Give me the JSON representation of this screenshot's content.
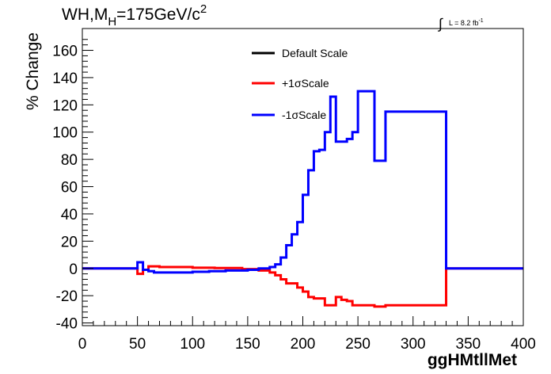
{
  "chart_data": {
    "type": "line",
    "title": {
      "prefix": "WH,M",
      "subscript": "H",
      "value": "=175GeV/c",
      "superscript": "2"
    },
    "lumi": {
      "integral_sign": "∫",
      "text": "L = 8.2 fb",
      "superscript": "-1"
    },
    "xlabel": "ggHMtllMet",
    "ylabel": "% Change",
    "xlim": [
      0,
      400
    ],
    "ylim": [
      -42,
      176
    ],
    "x_ticks": [
      0,
      50,
      100,
      150,
      200,
      250,
      300,
      350,
      400
    ],
    "y_ticks": [
      -40,
      -20,
      0,
      20,
      40,
      60,
      80,
      100,
      120,
      140,
      160
    ],
    "grid": false,
    "legend_position": "top-center",
    "series": [
      {
        "name": "Default Scale",
        "color": "#000000",
        "steps": []
      },
      {
        "name": "+1σScale",
        "color": "#ff0000",
        "steps": [
          [
            0,
            50,
            0
          ],
          [
            50,
            55,
            -4
          ],
          [
            55,
            60,
            -1
          ],
          [
            60,
            70,
            1.5
          ],
          [
            70,
            80,
            1
          ],
          [
            80,
            100,
            1
          ],
          [
            100,
            120,
            0.5
          ],
          [
            120,
            145,
            0.3
          ],
          [
            145,
            160,
            -0.5
          ],
          [
            160,
            170,
            -1.5
          ],
          [
            170,
            175,
            -3
          ],
          [
            175,
            180,
            -5
          ],
          [
            180,
            185,
            -8
          ],
          [
            185,
            195,
            -11
          ],
          [
            195,
            200,
            -14
          ],
          [
            200,
            205,
            -17
          ],
          [
            205,
            210,
            -21
          ],
          [
            210,
            220,
            -22
          ],
          [
            220,
            230,
            -27
          ],
          [
            230,
            235,
            -21
          ],
          [
            235,
            240,
            -23
          ],
          [
            240,
            245,
            -24
          ],
          [
            245,
            255,
            -27
          ],
          [
            255,
            265,
            -27
          ],
          [
            265,
            275,
            -28
          ],
          [
            275,
            285,
            -27
          ],
          [
            285,
            330,
            -27
          ],
          [
            330,
            400,
            0
          ]
        ]
      },
      {
        "name": "-1σScale",
        "color": "#0000ff",
        "steps": [
          [
            0,
            50,
            0
          ],
          [
            50,
            55,
            4.5
          ],
          [
            55,
            60,
            -1
          ],
          [
            60,
            65,
            -2
          ],
          [
            65,
            70,
            -3
          ],
          [
            70,
            80,
            -3
          ],
          [
            80,
            100,
            -3
          ],
          [
            100,
            115,
            -2.5
          ],
          [
            115,
            130,
            -2
          ],
          [
            130,
            150,
            -1.5
          ],
          [
            150,
            160,
            -1
          ],
          [
            160,
            170,
            0
          ],
          [
            170,
            175,
            1
          ],
          [
            175,
            180,
            3
          ],
          [
            180,
            185,
            8
          ],
          [
            185,
            190,
            17
          ],
          [
            190,
            195,
            25
          ],
          [
            195,
            200,
            34
          ],
          [
            200,
            205,
            54
          ],
          [
            205,
            210,
            72
          ],
          [
            210,
            215,
            86
          ],
          [
            215,
            220,
            87
          ],
          [
            220,
            225,
            100
          ],
          [
            225,
            230,
            126
          ],
          [
            230,
            235,
            93
          ],
          [
            235,
            240,
            93
          ],
          [
            240,
            245,
            95
          ],
          [
            245,
            250,
            100
          ],
          [
            250,
            265,
            130
          ],
          [
            265,
            270,
            79
          ],
          [
            270,
            275,
            79
          ],
          [
            275,
            285,
            115
          ],
          [
            285,
            330,
            115
          ],
          [
            330,
            400,
            0
          ]
        ]
      }
    ]
  }
}
